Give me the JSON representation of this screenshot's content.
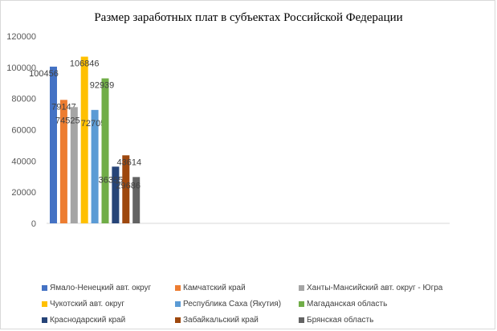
{
  "chart_data": {
    "type": "bar",
    "title": "Размер заработных плат в субъектах Российской Федерации",
    "xlabel": "",
    "ylabel": "",
    "ylim": [
      0,
      120000
    ],
    "yticks": [
      "0",
      "20000",
      "40000",
      "60000",
      "80000",
      "100000",
      "120000"
    ],
    "grid": false,
    "legend_position": "bottom",
    "series": [
      {
        "name": "Ямало-Ненецкий авт. округ",
        "value": 100456,
        "label": "100456",
        "color": "#4472c4"
      },
      {
        "name": "Камчатский край",
        "value": 79147,
        "label": "79147",
        "color": "#ed7d31"
      },
      {
        "name": "Ханты-Мансийский авт. округ - Югра",
        "value": 74525,
        "label": "74525",
        "color": "#a5a5a5"
      },
      {
        "name": "Чукотский авт. округ",
        "value": 106846,
        "label": "106846",
        "color": "#ffc000"
      },
      {
        "name": "Республика Саха (Якутия)",
        "value": 72705,
        "label": "72705",
        "color": "#5b9bd5"
      },
      {
        "name": "Магаданская область",
        "value": 92939,
        "label": "92939",
        "color": "#70ad47"
      },
      {
        "name": "Краснодарский край",
        "value": 36355,
        "label": "36355",
        "color": "#264478"
      },
      {
        "name": "Забайкальский край",
        "value": 43614,
        "label": "43614",
        "color": "#9e480e"
      },
      {
        "name": "Брянская область",
        "value": 29686,
        "label": "29686",
        "color": "#636363"
      }
    ]
  }
}
